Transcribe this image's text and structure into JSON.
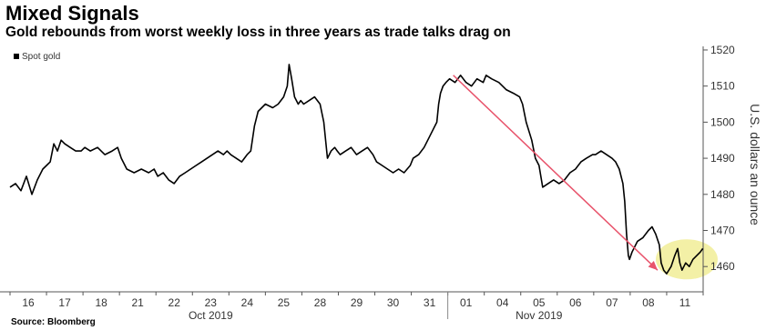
{
  "chart_data": {
    "type": "line",
    "title": "Mixed Signals",
    "subtitle": "Gold rebounds from worst weekly loss in three years as trade talks drag on",
    "source": "Source: Bloomberg",
    "ylabel": "U.S. dollars an ounce",
    "ylim": [
      1453,
      1521
    ],
    "yticks": [
      1460,
      1470,
      1480,
      1490,
      1500,
      1510,
      1520
    ],
    "x_categories": [
      "16",
      "17",
      "18",
      "21",
      "22",
      "23",
      "24",
      "25",
      "28",
      "29",
      "30",
      "31",
      "01",
      "04",
      "05",
      "06",
      "07",
      "08",
      "11"
    ],
    "month_labels": [
      {
        "label": "Oct 2019",
        "center_day": 5.5
      },
      {
        "label": "Nov 2019",
        "center_day": 14.5
      }
    ],
    "legend": {
      "label": "Spot gold",
      "placement": "top-left"
    },
    "grid": false,
    "series": [
      {
        "name": "Spot gold",
        "color": "#000000",
        "points": [
          [
            0.0,
            1482
          ],
          [
            0.15,
            1483
          ],
          [
            0.3,
            1481
          ],
          [
            0.45,
            1485
          ],
          [
            0.6,
            1480
          ],
          [
            0.75,
            1484
          ],
          [
            0.9,
            1487
          ],
          [
            1.0,
            1488
          ],
          [
            1.1,
            1489
          ],
          [
            1.2,
            1494
          ],
          [
            1.3,
            1492
          ],
          [
            1.4,
            1495
          ],
          [
            1.5,
            1494
          ],
          [
            1.65,
            1493
          ],
          [
            1.8,
            1492
          ],
          [
            1.95,
            1492
          ],
          [
            2.05,
            1493
          ],
          [
            2.2,
            1492
          ],
          [
            2.4,
            1493
          ],
          [
            2.6,
            1491
          ],
          [
            2.8,
            1492
          ],
          [
            2.95,
            1493
          ],
          [
            3.05,
            1490
          ],
          [
            3.2,
            1487
          ],
          [
            3.4,
            1486
          ],
          [
            3.6,
            1487
          ],
          [
            3.8,
            1486
          ],
          [
            3.95,
            1487
          ],
          [
            4.05,
            1485
          ],
          [
            4.2,
            1486
          ],
          [
            4.35,
            1484
          ],
          [
            4.5,
            1483
          ],
          [
            4.65,
            1485
          ],
          [
            4.8,
            1486
          ],
          [
            4.95,
            1487
          ],
          [
            5.1,
            1488
          ],
          [
            5.25,
            1489
          ],
          [
            5.4,
            1490
          ],
          [
            5.55,
            1491
          ],
          [
            5.7,
            1492
          ],
          [
            5.85,
            1491
          ],
          [
            5.95,
            1492
          ],
          [
            6.05,
            1491
          ],
          [
            6.2,
            1490
          ],
          [
            6.35,
            1489
          ],
          [
            6.5,
            1491
          ],
          [
            6.6,
            1492
          ],
          [
            6.7,
            1499
          ],
          [
            6.8,
            1503
          ],
          [
            6.9,
            1504
          ],
          [
            7.0,
            1505
          ],
          [
            7.2,
            1504
          ],
          [
            7.35,
            1505
          ],
          [
            7.5,
            1507
          ],
          [
            7.6,
            1510
          ],
          [
            7.65,
            1516
          ],
          [
            7.72,
            1512
          ],
          [
            7.8,
            1507
          ],
          [
            7.9,
            1505
          ],
          [
            7.97,
            1506
          ],
          [
            8.05,
            1505
          ],
          [
            8.2,
            1506
          ],
          [
            8.35,
            1507
          ],
          [
            8.5,
            1505
          ],
          [
            8.6,
            1500
          ],
          [
            8.7,
            1490
          ],
          [
            8.8,
            1492
          ],
          [
            8.9,
            1493
          ],
          [
            8.97,
            1492
          ],
          [
            9.05,
            1491
          ],
          [
            9.2,
            1492
          ],
          [
            9.35,
            1493
          ],
          [
            9.5,
            1491
          ],
          [
            9.65,
            1492
          ],
          [
            9.8,
            1493
          ],
          [
            9.95,
            1491
          ],
          [
            10.05,
            1489
          ],
          [
            10.2,
            1488
          ],
          [
            10.35,
            1487
          ],
          [
            10.5,
            1486
          ],
          [
            10.65,
            1487
          ],
          [
            10.8,
            1486
          ],
          [
            10.97,
            1488
          ],
          [
            11.05,
            1490
          ],
          [
            11.2,
            1491
          ],
          [
            11.35,
            1493
          ],
          [
            11.5,
            1496
          ],
          [
            11.6,
            1498
          ],
          [
            11.7,
            1500
          ],
          [
            11.75,
            1505
          ],
          [
            11.8,
            1508
          ],
          [
            11.87,
            1510
          ],
          [
            11.95,
            1511
          ],
          [
            12.05,
            1512
          ],
          [
            12.2,
            1511
          ],
          [
            12.35,
            1513
          ],
          [
            12.5,
            1511
          ],
          [
            12.65,
            1510
          ],
          [
            12.8,
            1512
          ],
          [
            12.97,
            1511
          ],
          [
            13.05,
            1513
          ],
          [
            13.2,
            1512
          ],
          [
            13.4,
            1511
          ],
          [
            13.6,
            1509
          ],
          [
            13.8,
            1508
          ],
          [
            13.97,
            1507
          ],
          [
            14.05,
            1505
          ],
          [
            14.15,
            1500
          ],
          [
            14.3,
            1495
          ],
          [
            14.4,
            1490
          ],
          [
            14.5,
            1488
          ],
          [
            14.6,
            1482
          ],
          [
            14.75,
            1483
          ],
          [
            14.9,
            1484
          ],
          [
            15.05,
            1483
          ],
          [
            15.2,
            1484
          ],
          [
            15.35,
            1486
          ],
          [
            15.5,
            1487
          ],
          [
            15.65,
            1489
          ],
          [
            15.8,
            1490
          ],
          [
            15.97,
            1491
          ],
          [
            16.05,
            1491
          ],
          [
            16.2,
            1492
          ],
          [
            16.35,
            1491
          ],
          [
            16.5,
            1490
          ],
          [
            16.6,
            1489
          ],
          [
            16.7,
            1487
          ],
          [
            16.8,
            1483
          ],
          [
            16.85,
            1478
          ],
          [
            16.9,
            1469
          ],
          [
            16.95,
            1463
          ],
          [
            16.98,
            1462
          ],
          [
            17.05,
            1464
          ],
          [
            17.2,
            1467
          ],
          [
            17.35,
            1468
          ],
          [
            17.5,
            1470
          ],
          [
            17.6,
            1471
          ],
          [
            17.7,
            1469
          ],
          [
            17.8,
            1466
          ],
          [
            17.85,
            1461
          ],
          [
            17.92,
            1459
          ],
          [
            18.0,
            1458
          ],
          [
            18.12,
            1460
          ],
          [
            18.22,
            1463
          ],
          [
            18.3,
            1465
          ],
          [
            18.36,
            1461
          ],
          [
            18.42,
            1459
          ],
          [
            18.52,
            1461
          ],
          [
            18.62,
            1460
          ],
          [
            18.72,
            1462
          ],
          [
            18.82,
            1463
          ],
          [
            18.92,
            1464
          ],
          [
            18.99,
            1465
          ]
        ]
      }
    ],
    "annotations": [
      {
        "type": "arrow",
        "color": "#e8536b",
        "from": [
          12.15,
          1513
        ],
        "to": [
          17.75,
          1459
        ]
      },
      {
        "type": "highlight-ellipse",
        "color": "#f3f0a6",
        "center": [
          18.55,
          1462
        ]
      }
    ]
  }
}
